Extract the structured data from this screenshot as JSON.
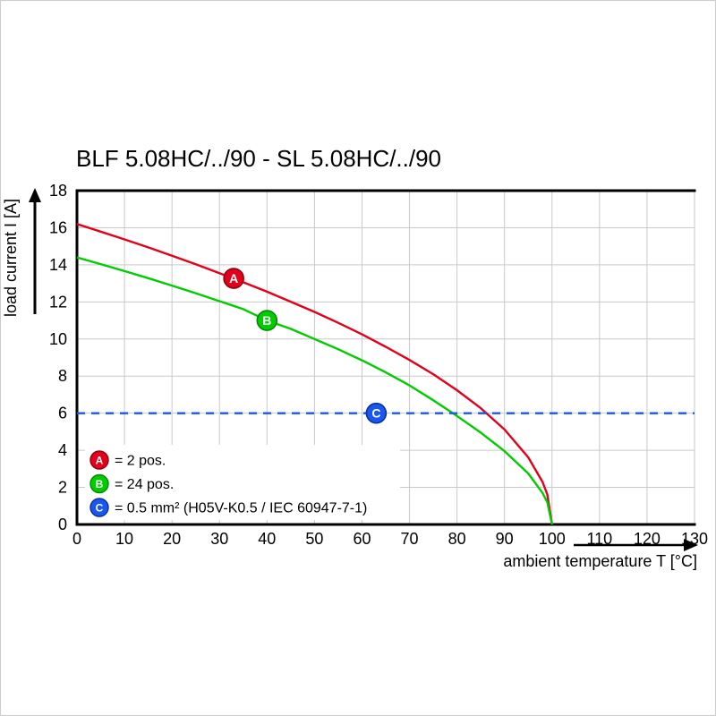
{
  "chart_data": {
    "type": "line",
    "title": "BLF 5.08HC/../90 - SL 5.08HC/../90",
    "xlabel": "ambient temperature T [°C]",
    "ylabel": "load current I [A]",
    "xlim": [
      0,
      130
    ],
    "ylim": [
      0,
      18
    ],
    "xticks": [
      0,
      10,
      20,
      30,
      40,
      50,
      60,
      70,
      80,
      90,
      100,
      110,
      120,
      130
    ],
    "yticks": [
      0,
      2,
      4,
      6,
      8,
      10,
      12,
      14,
      16,
      18
    ],
    "grid": true,
    "legend_position": "bottom-left-inside",
    "series": [
      {
        "name": "A",
        "label": "= 2 pos.",
        "color": "#e2001a",
        "marker_edge": "#8e0010",
        "line_style": "solid",
        "marker_point": [
          33,
          13.27
        ],
        "points": [
          [
            0,
            16.2
          ],
          [
            5,
            15.79
          ],
          [
            10,
            15.37
          ],
          [
            15,
            14.94
          ],
          [
            20,
            14.49
          ],
          [
            25,
            14.03
          ],
          [
            30,
            13.55
          ],
          [
            35,
            13.06
          ],
          [
            40,
            12.55
          ],
          [
            45,
            12.01
          ],
          [
            50,
            11.46
          ],
          [
            55,
            10.87
          ],
          [
            60,
            10.25
          ],
          [
            65,
            9.58
          ],
          [
            70,
            8.87
          ],
          [
            75,
            8.1
          ],
          [
            80,
            7.24
          ],
          [
            85,
            6.27
          ],
          [
            90,
            5.12
          ],
          [
            95,
            3.62
          ],
          [
            98,
            2.29
          ],
          [
            99,
            1.62
          ],
          [
            100,
            0
          ]
        ]
      },
      {
        "name": "B",
        "label": "= 24 pos.",
        "color": "#00cc00",
        "marker_edge": "#008a00",
        "line_style": "solid",
        "marker_point": [
          40,
          11.0
        ],
        "points": [
          [
            0,
            14.4
          ],
          [
            5,
            14.04
          ],
          [
            10,
            13.66
          ],
          [
            15,
            13.28
          ],
          [
            20,
            12.88
          ],
          [
            25,
            12.47
          ],
          [
            30,
            12.04
          ],
          [
            35,
            11.61
          ],
          [
            40,
            11.0
          ],
          [
            45,
            10.55
          ],
          [
            50,
            10.0
          ],
          [
            55,
            9.45
          ],
          [
            60,
            8.85
          ],
          [
            65,
            8.2
          ],
          [
            70,
            7.5
          ],
          [
            75,
            6.7
          ],
          [
            80,
            5.85
          ],
          [
            85,
            4.95
          ],
          [
            90,
            3.95
          ],
          [
            95,
            2.75
          ],
          [
            98,
            1.7
          ],
          [
            99,
            1.2
          ],
          [
            100,
            0
          ]
        ]
      },
      {
        "name": "C",
        "label": "= 0.5 mm² (H05V-K0.5 / IEC 60947-7-1)",
        "color": "#1a56f0",
        "marker_edge": "#0a2fa0",
        "line_style": "dashed",
        "marker_point": [
          63,
          6
        ],
        "points": [
          [
            0,
            6
          ],
          [
            130,
            6
          ]
        ]
      }
    ]
  }
}
